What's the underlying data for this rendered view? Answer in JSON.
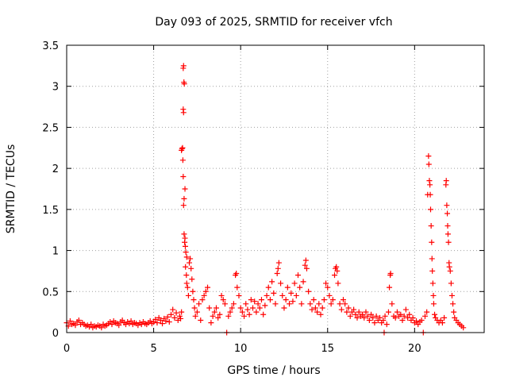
{
  "chart_data": {
    "type": "scatter",
    "title": "Day 093 of 2025, SRMTID for receiver vfch",
    "xlabel": "GPS time / hours",
    "ylabel": "SRMTID / TECUs",
    "xlim": [
      0,
      24
    ],
    "ylim": [
      0,
      3.5
    ],
    "xticks": [
      0,
      5,
      10,
      15,
      20
    ],
    "yticks": [
      0,
      0.5,
      1,
      1.5,
      2,
      2.5,
      3,
      3.5
    ],
    "xtick_labels": [
      "0",
      "5",
      "10",
      "15",
      "20"
    ],
    "ytick_labels": [
      "0",
      "0.5",
      "1",
      "1.5",
      "2",
      "2.5",
      "3",
      "3.5"
    ],
    "grid": true,
    "marker": "+",
    "color": "#ff0000",
    "series": [
      {
        "name": "vfch",
        "points": [
          [
            0.0,
            0.12
          ],
          [
            0.1,
            0.08
          ],
          [
            0.2,
            0.14
          ],
          [
            0.3,
            0.1
          ],
          [
            0.4,
            0.11
          ],
          [
            0.5,
            0.09
          ],
          [
            0.6,
            0.13
          ],
          [
            0.7,
            0.15
          ],
          [
            0.8,
            0.1
          ],
          [
            0.9,
            0.12
          ],
          [
            1.0,
            0.1
          ],
          [
            1.1,
            0.08
          ],
          [
            1.2,
            0.09
          ],
          [
            1.3,
            0.07
          ],
          [
            1.4,
            0.1
          ],
          [
            1.5,
            0.06
          ],
          [
            1.6,
            0.08
          ],
          [
            1.7,
            0.07
          ],
          [
            1.8,
            0.09
          ],
          [
            1.9,
            0.08
          ],
          [
            2.0,
            0.06
          ],
          [
            2.1,
            0.1
          ],
          [
            2.2,
            0.08
          ],
          [
            2.3,
            0.09
          ],
          [
            2.4,
            0.11
          ],
          [
            2.5,
            0.13
          ],
          [
            2.6,
            0.1
          ],
          [
            2.7,
            0.14
          ],
          [
            2.8,
            0.12
          ],
          [
            2.9,
            0.11
          ],
          [
            3.0,
            0.09
          ],
          [
            3.1,
            0.13
          ],
          [
            3.2,
            0.15
          ],
          [
            3.3,
            0.12
          ],
          [
            3.4,
            0.1
          ],
          [
            3.5,
            0.13
          ],
          [
            3.6,
            0.11
          ],
          [
            3.7,
            0.14
          ],
          [
            3.8,
            0.1
          ],
          [
            3.9,
            0.12
          ],
          [
            4.0,
            0.11
          ],
          [
            4.1,
            0.09
          ],
          [
            4.2,
            0.12
          ],
          [
            4.3,
            0.1
          ],
          [
            4.4,
            0.13
          ],
          [
            4.5,
            0.11
          ],
          [
            4.6,
            0.1
          ],
          [
            4.7,
            0.12
          ],
          [
            4.8,
            0.14
          ],
          [
            4.9,
            0.11
          ],
          [
            5.0,
            0.13
          ],
          [
            5.1,
            0.16
          ],
          [
            5.2,
            0.12
          ],
          [
            5.3,
            0.18
          ],
          [
            5.4,
            0.15
          ],
          [
            5.5,
            0.11
          ],
          [
            5.6,
            0.17
          ],
          [
            5.7,
            0.14
          ],
          [
            5.8,
            0.19
          ],
          [
            5.9,
            0.13
          ],
          [
            6.0,
            0.22
          ],
          [
            6.1,
            0.28
          ],
          [
            6.2,
            0.18
          ],
          [
            6.3,
            0.24
          ],
          [
            6.4,
            0.15
          ],
          [
            6.5,
            0.2
          ],
          [
            6.55,
            0.17
          ],
          [
            6.6,
            0.25
          ],
          [
            6.6,
            2.22
          ],
          [
            6.63,
            2.24
          ],
          [
            6.66,
            2.25
          ],
          [
            6.68,
            2.1
          ],
          [
            6.7,
            1.9
          ],
          [
            6.72,
            1.55
          ],
          [
            6.75,
            1.63
          ],
          [
            6.8,
            1.75
          ],
          [
            6.7,
            3.22
          ],
          [
            6.72,
            3.25
          ],
          [
            6.74,
            3.05
          ],
          [
            6.76,
            3.03
          ],
          [
            6.7,
            2.72
          ],
          [
            6.72,
            2.68
          ],
          [
            6.75,
            1.2
          ],
          [
            6.8,
            1.15
          ],
          [
            6.82,
            1.05
          ],
          [
            6.85,
            0.98
          ],
          [
            6.9,
            0.92
          ],
          [
            6.78,
            1.1
          ],
          [
            6.83,
            0.8
          ],
          [
            6.88,
            0.7
          ],
          [
            6.9,
            0.6
          ],
          [
            6.95,
            0.55
          ],
          [
            7.0,
            0.45
          ],
          [
            7.05,
            0.85
          ],
          [
            7.1,
            0.9
          ],
          [
            7.15,
            0.78
          ],
          [
            7.2,
            0.65
          ],
          [
            7.25,
            0.5
          ],
          [
            7.3,
            0.4
          ],
          [
            7.35,
            0.3
          ],
          [
            7.4,
            0.2
          ],
          [
            7.5,
            0.25
          ],
          [
            7.6,
            0.35
          ],
          [
            7.7,
            0.15
          ],
          [
            7.8,
            0.4
          ],
          [
            7.9,
            0.45
          ],
          [
            8.0,
            0.5
          ],
          [
            8.1,
            0.55
          ],
          [
            8.2,
            0.3
          ],
          [
            8.3,
            0.12
          ],
          [
            8.4,
            0.2
          ],
          [
            8.5,
            0.25
          ],
          [
            8.6,
            0.3
          ],
          [
            8.7,
            0.18
          ],
          [
            8.8,
            0.22
          ],
          [
            8.9,
            0.45
          ],
          [
            9.0,
            0.4
          ],
          [
            9.1,
            0.35
          ],
          [
            9.2,
            0.0
          ],
          [
            9.3,
            0.2
          ],
          [
            9.4,
            0.25
          ],
          [
            9.5,
            0.3
          ],
          [
            9.6,
            0.35
          ],
          [
            9.7,
            0.7
          ],
          [
            9.75,
            0.72
          ],
          [
            9.8,
            0.55
          ],
          [
            9.9,
            0.45
          ],
          [
            10.0,
            0.3
          ],
          [
            10.1,
            0.25
          ],
          [
            10.2,
            0.2
          ],
          [
            10.3,
            0.35
          ],
          [
            10.4,
            0.28
          ],
          [
            10.5,
            0.22
          ],
          [
            10.6,
            0.4
          ],
          [
            10.7,
            0.3
          ],
          [
            10.8,
            0.38
          ],
          [
            10.9,
            0.25
          ],
          [
            11.0,
            0.35
          ],
          [
            11.1,
            0.3
          ],
          [
            11.2,
            0.4
          ],
          [
            11.3,
            0.22
          ],
          [
            11.4,
            0.33
          ],
          [
            11.5,
            0.45
          ],
          [
            11.6,
            0.55
          ],
          [
            11.7,
            0.4
          ],
          [
            11.8,
            0.62
          ],
          [
            11.9,
            0.48
          ],
          [
            12.0,
            0.35
          ],
          [
            12.1,
            0.72
          ],
          [
            12.15,
            0.78
          ],
          [
            12.2,
            0.85
          ],
          [
            12.3,
            0.6
          ],
          [
            12.4,
            0.45
          ],
          [
            12.5,
            0.3
          ],
          [
            12.6,
            0.4
          ],
          [
            12.7,
            0.55
          ],
          [
            12.8,
            0.35
          ],
          [
            12.9,
            0.48
          ],
          [
            13.0,
            0.38
          ],
          [
            13.1,
            0.6
          ],
          [
            13.2,
            0.45
          ],
          [
            13.3,
            0.7
          ],
          [
            13.4,
            0.55
          ],
          [
            13.5,
            0.35
          ],
          [
            13.6,
            0.62
          ],
          [
            13.7,
            0.82
          ],
          [
            13.75,
            0.88
          ],
          [
            13.8,
            0.78
          ],
          [
            13.9,
            0.5
          ],
          [
            14.0,
            0.35
          ],
          [
            14.1,
            0.28
          ],
          [
            14.2,
            0.4
          ],
          [
            14.3,
            0.3
          ],
          [
            14.4,
            0.25
          ],
          [
            14.5,
            0.35
          ],
          [
            14.6,
            0.22
          ],
          [
            14.7,
            0.3
          ],
          [
            14.8,
            0.4
          ],
          [
            14.9,
            0.6
          ],
          [
            15.0,
            0.55
          ],
          [
            15.1,
            0.45
          ],
          [
            15.2,
            0.35
          ],
          [
            15.3,
            0.4
          ],
          [
            15.4,
            0.7
          ],
          [
            15.45,
            0.78
          ],
          [
            15.5,
            0.8
          ],
          [
            15.55,
            0.75
          ],
          [
            15.6,
            0.6
          ],
          [
            15.7,
            0.35
          ],
          [
            15.8,
            0.28
          ],
          [
            15.9,
            0.4
          ],
          [
            16.0,
            0.35
          ],
          [
            16.1,
            0.25
          ],
          [
            16.2,
            0.3
          ],
          [
            16.3,
            0.2
          ],
          [
            16.4,
            0.25
          ],
          [
            16.5,
            0.28
          ],
          [
            16.6,
            0.22
          ],
          [
            16.7,
            0.18
          ],
          [
            16.8,
            0.25
          ],
          [
            16.9,
            0.2
          ],
          [
            17.0,
            0.22
          ],
          [
            17.1,
            0.18
          ],
          [
            17.2,
            0.25
          ],
          [
            17.3,
            0.2
          ],
          [
            17.4,
            0.15
          ],
          [
            17.5,
            0.22
          ],
          [
            17.6,
            0.18
          ],
          [
            17.7,
            0.12
          ],
          [
            17.8,
            0.2
          ],
          [
            17.9,
            0.15
          ],
          [
            18.0,
            0.18
          ],
          [
            18.1,
            0.12
          ],
          [
            18.2,
            0.15
          ],
          [
            18.25,
            0.0
          ],
          [
            18.3,
            0.2
          ],
          [
            18.4,
            0.1
          ],
          [
            18.5,
            0.25
          ],
          [
            18.55,
            0.55
          ],
          [
            18.6,
            0.7
          ],
          [
            18.62,
            0.72
          ],
          [
            18.7,
            0.35
          ],
          [
            18.8,
            0.2
          ],
          [
            18.9,
            0.18
          ],
          [
            19.0,
            0.25
          ],
          [
            19.1,
            0.2
          ],
          [
            19.2,
            0.22
          ],
          [
            19.3,
            0.15
          ],
          [
            19.4,
            0.2
          ],
          [
            19.5,
            0.28
          ],
          [
            19.6,
            0.18
          ],
          [
            19.7,
            0.22
          ],
          [
            19.8,
            0.15
          ],
          [
            19.9,
            0.18
          ],
          [
            20.0,
            0.12
          ],
          [
            20.1,
            0.14
          ],
          [
            20.2,
            0.1
          ],
          [
            20.3,
            0.13
          ],
          [
            20.4,
            0.15
          ],
          [
            20.5,
            0.0
          ],
          [
            20.6,
            0.2
          ],
          [
            20.7,
            0.25
          ],
          [
            20.75,
            1.68
          ],
          [
            20.8,
            2.15
          ],
          [
            20.82,
            2.05
          ],
          [
            20.85,
            1.85
          ],
          [
            20.88,
            1.8
          ],
          [
            20.9,
            1.68
          ],
          [
            20.92,
            1.5
          ],
          [
            20.95,
            1.3
          ],
          [
            20.98,
            1.1
          ],
          [
            21.0,
            0.9
          ],
          [
            21.02,
            0.75
          ],
          [
            21.05,
            0.6
          ],
          [
            21.08,
            0.45
          ],
          [
            21.1,
            0.35
          ],
          [
            21.15,
            0.22
          ],
          [
            21.2,
            0.18
          ],
          [
            21.3,
            0.15
          ],
          [
            21.4,
            0.12
          ],
          [
            21.5,
            0.15
          ],
          [
            21.6,
            0.12
          ],
          [
            21.7,
            0.18
          ],
          [
            21.8,
            1.8
          ],
          [
            21.82,
            1.85
          ],
          [
            21.85,
            1.55
          ],
          [
            21.88,
            1.45
          ],
          [
            21.9,
            1.3
          ],
          [
            21.92,
            1.2
          ],
          [
            21.95,
            1.1
          ],
          [
            21.98,
            0.85
          ],
          [
            22.0,
            0.8
          ],
          [
            22.05,
            0.75
          ],
          [
            22.1,
            0.6
          ],
          [
            22.15,
            0.45
          ],
          [
            22.2,
            0.35
          ],
          [
            22.25,
            0.25
          ],
          [
            22.3,
            0.18
          ],
          [
            22.4,
            0.15
          ],
          [
            22.5,
            0.12
          ],
          [
            22.6,
            0.1
          ],
          [
            22.7,
            0.08
          ],
          [
            22.8,
            0.06
          ]
        ]
      }
    ]
  }
}
